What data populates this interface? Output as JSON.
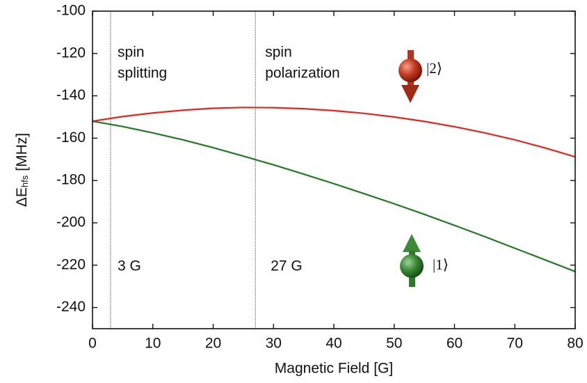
{
  "chart_data": {
    "type": "line",
    "xlabel": "Magnetic Field [G]",
    "ylabel": "ΔE",
    "ylabel_sub": "hfs",
    "ylabel_unit": "[MHz]",
    "x": [
      0,
      5,
      10,
      15,
      20,
      25,
      30,
      35,
      40,
      45,
      50,
      55,
      60,
      65,
      70,
      75,
      80
    ],
    "series": [
      {
        "name": "|2⟩",
        "color": "#e8231c",
        "values": [
          -152,
          -149.8,
          -148.1,
          -146.8,
          -145.9,
          -145.5,
          -145.6,
          -146.1,
          -147.0,
          -148.3,
          -150.0,
          -152.1,
          -154.6,
          -157.5,
          -160.8,
          -164.6,
          -168.8
        ]
      },
      {
        "name": "|1⟩",
        "color": "#1f7a1f",
        "values": [
          -152,
          -154.5,
          -157.5,
          -160.8,
          -164.5,
          -168.5,
          -172.6,
          -177,
          -181.5,
          -186.2,
          -191,
          -196,
          -201.2,
          -206.5,
          -212,
          -217.5,
          -223
        ]
      }
    ],
    "vlines": [
      {
        "value": 3,
        "label": "3 G"
      },
      {
        "value": 27,
        "label": "27 G"
      }
    ],
    "annotations": [
      [
        "spin",
        "splitting"
      ],
      [
        "spin",
        "polarization"
      ]
    ],
    "xlim": [
      0,
      80
    ],
    "xticks": [
      0,
      10,
      20,
      30,
      40,
      50,
      60,
      70,
      80
    ],
    "ylim": [
      -250,
      -100
    ],
    "yticks": [
      -100,
      -120,
      -140,
      -160,
      -180,
      -200,
      -220,
      -240
    ],
    "grid": false
  }
}
